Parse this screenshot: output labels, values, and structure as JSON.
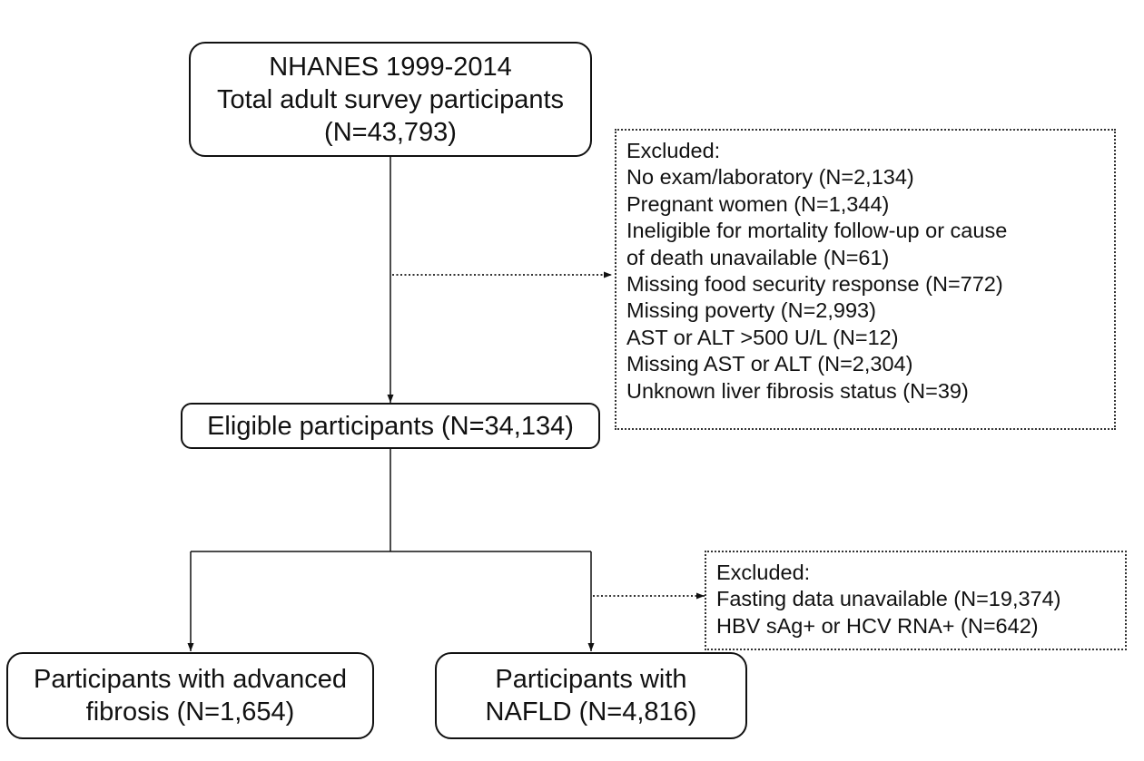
{
  "start_box": {
    "line1": "NHANES 1999-2014",
    "line2": "Total adult survey participants",
    "line3": "(N=43,793)"
  },
  "exclusion_1": {
    "title": "Excluded:",
    "items": [
      "No exam/laboratory (N=2,134)",
      "Pregnant women (N=1,344)",
      "Ineligible for mortality follow-up or cause",
      "of death unavailable (N=61)",
      "Missing food security response (N=772)",
      "Missing poverty (N=2,993)",
      "AST or ALT >500 U/L (N=12)",
      "Missing AST or ALT (N=2,304)",
      "Unknown liver fibrosis status (N=39)"
    ]
  },
  "eligible_box": {
    "label": "Eligible participants (N=34,134)"
  },
  "exclusion_2": {
    "title": "Excluded:",
    "items": [
      "Fasting data unavailable (N=19,374)",
      "HBV sAg+ or HCV RNA+ (N=642)"
    ]
  },
  "fibrosis_box": {
    "line1": "Participants with advanced",
    "line2": "fibrosis (N=1,654)"
  },
  "nafld_box": {
    "line1": "Participants with",
    "line2": "NAFLD (N=4,816)"
  }
}
